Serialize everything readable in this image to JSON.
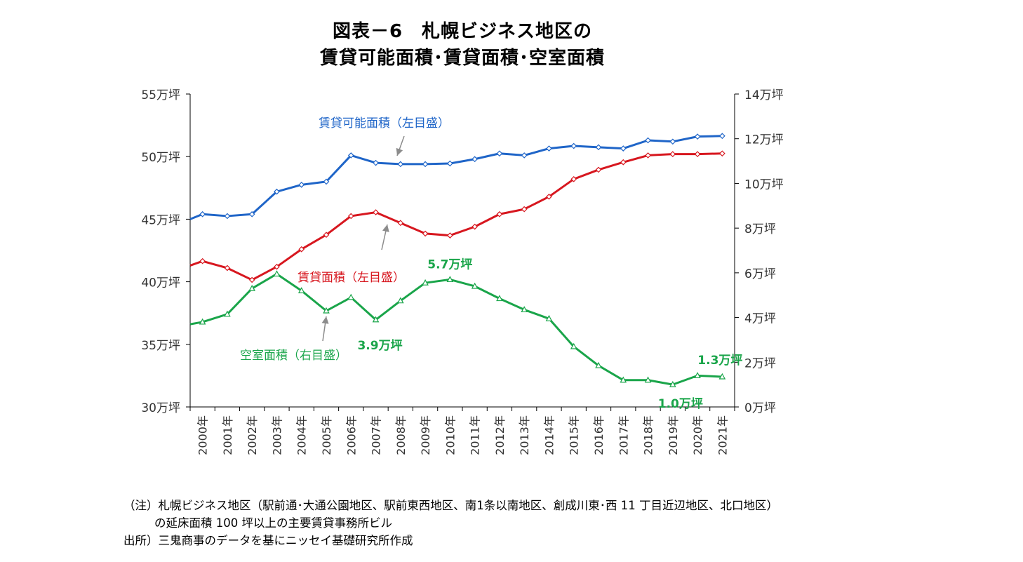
{
  "title": {
    "line1": "図表－6　札幌ビジネス地区の",
    "line2": "賃貸可能面積･賃貸面積･空室面積"
  },
  "chart_data": {
    "type": "line",
    "x": [
      "2000年",
      "2001年",
      "2002年",
      "2003年",
      "2004年",
      "2005年",
      "2006年",
      "2007年",
      "2008年",
      "2009年",
      "2010年",
      "2011年",
      "2012年",
      "2013年",
      "2014年",
      "2015年",
      "2016年",
      "2017年",
      "2018年",
      "2019年",
      "2020年",
      "2021年"
    ],
    "left_axis": {
      "min": 30,
      "max": 55,
      "step": 5,
      "tick_suffix": "万坪"
    },
    "right_axis": {
      "min": 0,
      "max": 14,
      "step": 2,
      "tick_suffix": "万坪"
    },
    "series": [
      {
        "name": "賃貸可能面積（左目盛）",
        "axis": "left",
        "color": "#1f65c8",
        "marker": "diamond",
        "start": 45.0,
        "values": [
          45.4,
          45.25,
          45.4,
          47.2,
          47.75,
          48.0,
          50.1,
          49.5,
          49.4,
          49.4,
          49.45,
          49.8,
          50.25,
          50.1,
          50.65,
          50.85,
          50.75,
          50.65,
          51.3,
          51.2,
          51.6,
          51.65
        ]
      },
      {
        "name": "賃貸面積（左目盛）",
        "axis": "left",
        "color": "#d7171f",
        "marker": "diamond",
        "start": 41.3,
        "values": [
          41.65,
          41.1,
          40.15,
          41.2,
          42.6,
          43.75,
          45.25,
          45.55,
          44.7,
          43.85,
          43.7,
          44.4,
          45.4,
          45.8,
          46.8,
          48.2,
          48.95,
          49.55,
          50.1,
          50.2,
          50.2,
          50.25
        ]
      },
      {
        "name": "空室面積（右目盛）",
        "axis": "right",
        "color": "#1aa54a",
        "marker": "triangle",
        "start": 3.7,
        "values": [
          3.8,
          4.15,
          5.3,
          5.95,
          5.2,
          4.3,
          4.9,
          3.9,
          4.75,
          5.55,
          5.7,
          5.4,
          4.85,
          4.35,
          3.95,
          2.7,
          1.85,
          1.2,
          1.2,
          1.0,
          1.4,
          1.35
        ]
      }
    ],
    "annotations": [
      {
        "text": "5.7万坪",
        "series": 2,
        "index": 10
      },
      {
        "text": "3.9万坪",
        "series": 2,
        "index": 7
      },
      {
        "text": "1.0万坪",
        "series": 2,
        "index": 19
      },
      {
        "text": "1.3万坪",
        "series": 2,
        "index": 21
      }
    ]
  },
  "notes": {
    "line1": "（注）札幌ビジネス地区（駅前通･大通公園地区、駅前東西地区、南1条以南地区、創成川東･西 11 丁目近辺地区、北口地区）",
    "line2": "の延床面積 100 坪以上の主要賃貸事務所ビル",
    "line3": "出所）三鬼商事のデータを基にニッセイ基礎研究所作成"
  }
}
